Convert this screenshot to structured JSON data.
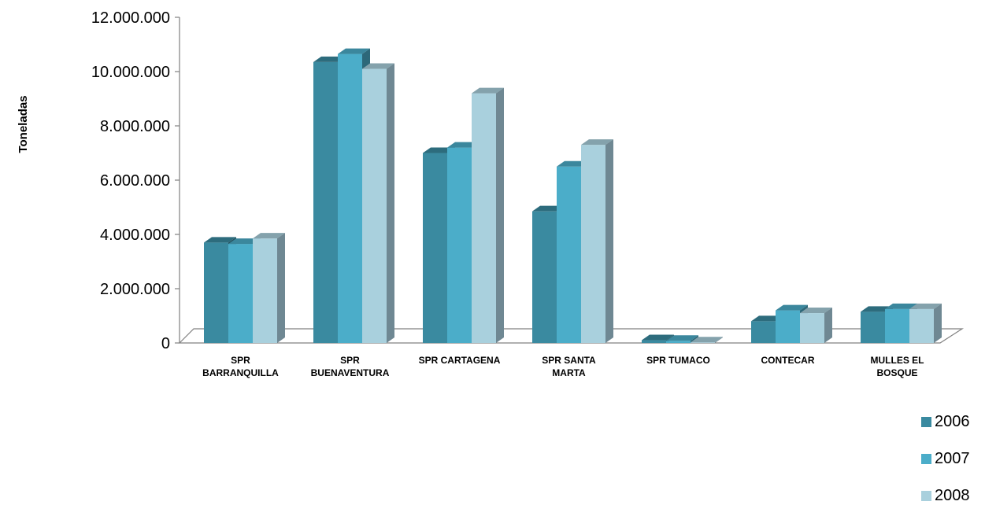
{
  "chart_data": {
    "type": "bar",
    "ylabel": "Toneladas",
    "ylim": [
      0,
      12000000
    ],
    "ytick_step": 2000000,
    "ytick_labels": [
      "0",
      "2.000.000",
      "4.000.000",
      "6.000.000",
      "8.000.000",
      "10.000.000",
      "12.000.000"
    ],
    "categories": [
      [
        "SPR",
        "BARRANQUILLA"
      ],
      [
        "SPR",
        "BUENAVENTURA"
      ],
      [
        "SPR CARTAGENA"
      ],
      [
        "SPR SANTA",
        "MARTA"
      ],
      [
        "SPR TUMACO"
      ],
      [
        "CONTECAR"
      ],
      [
        "MULLES EL",
        "BOSQUE"
      ]
    ],
    "series": [
      {
        "name": "2006",
        "color": "#3a8aa0",
        "values": [
          3700000,
          10350000,
          7000000,
          4850000,
          100000,
          800000,
          1150000
        ]
      },
      {
        "name": "2007",
        "color": "#4badc9",
        "values": [
          3650000,
          10650000,
          7200000,
          6500000,
          80000,
          1200000,
          1250000
        ]
      },
      {
        "name": "2008",
        "color": "#a9d0dd",
        "values": [
          3850000,
          10100000,
          9200000,
          7300000,
          20000,
          1100000,
          1250000
        ]
      }
    ],
    "legend_position": "bottom-right",
    "grid": false,
    "three_d": true
  }
}
